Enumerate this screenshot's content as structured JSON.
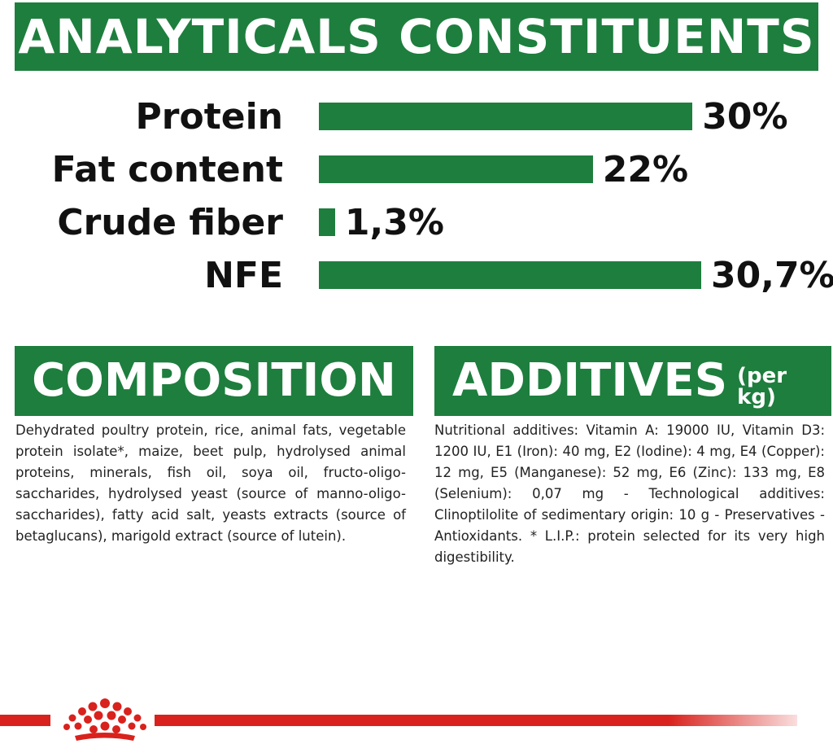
{
  "analyticals": {
    "title": "ANALYTICALS CONSTITUENTS",
    "rows": [
      {
        "label": "Protein",
        "value_text": "30%",
        "value": 30
      },
      {
        "label": "Fat content",
        "value_text": "22%",
        "value": 22
      },
      {
        "label": "Crude fiber",
        "value_text": "1,3%",
        "value": 1.3
      },
      {
        "label": "NFE",
        "value_text": "30,7%",
        "value": 30.7
      }
    ],
    "bar_color": "#1e7e3e"
  },
  "composition": {
    "title": "COMPOSITION",
    "text": "Dehydrated poultry protein, rice, animal fats, vegetable protein isolate*, maize, beet pulp, hydrolysed animal proteins, minerals, fish oil, soya oil, fructo-oligo-saccharides, hydrolysed yeast (source of manno-oligo-saccharides), fatty acid salt, yeasts extracts (source of betaglucans), marigold extract (source of lutein)."
  },
  "additives": {
    "title": "ADDITIVES",
    "subtitle": "(per kg)",
    "text": "Nutritional additives: Vitamin A: 19000 IU, Vitamin D3: 1200 IU, E1 (Iron): 40 mg, E2 (Iodine): 4 mg, E4 (Copper): 12 mg, E5 (Manganese): 52 mg, E6 (Zinc): 133 mg, E8 (Selenium): 0,07 mg - Technological additives: Clinoptilolite of sedimentary origin: 10 g - Preservatives - Antioxidants. * L.I.P.: protein selected for its very high digestibility."
  },
  "colors": {
    "brand_green": "#1e7e3e",
    "brand_red": "#d9221d"
  },
  "icons": {
    "logo": "crown-logo-icon"
  }
}
